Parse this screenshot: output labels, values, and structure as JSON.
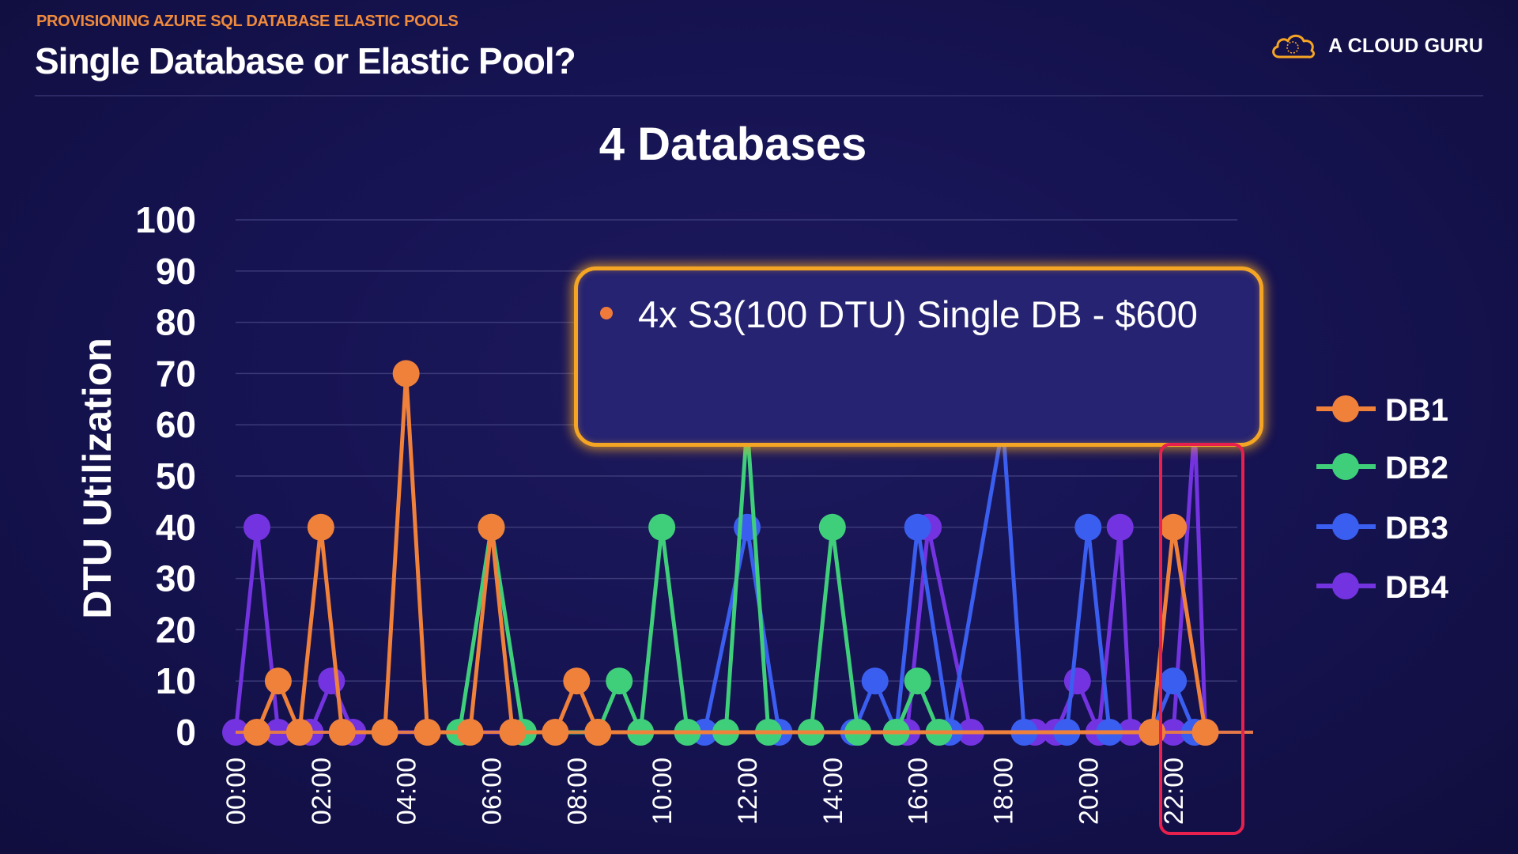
{
  "slide": {
    "kicker": "PROVISIONING AZURE SQL DATABASE ELASTIC POOLS",
    "title": "Single Database or Elastic Pool?",
    "brand": "A CLOUD GURU"
  },
  "callout": {
    "text": "4x S3(100 DTU) Single DB - $600"
  },
  "colors": {
    "DB1": "#f0813a",
    "DB2": "#3fcf7a",
    "DB3": "#3a5ef0",
    "DB4": "#7433e0",
    "accent": "#f5a524",
    "highlight": "#e8204d"
  },
  "chart_data": {
    "type": "line",
    "title": "4 Databases",
    "xlabel": "",
    "ylabel": "DTU Utilization",
    "ylim": [
      0,
      100
    ],
    "yticks": [
      0,
      10,
      20,
      30,
      40,
      50,
      60,
      70,
      80,
      90,
      100
    ],
    "xlim": [
      0,
      23.5
    ],
    "xticks": [
      "00:00",
      "02:00",
      "04:00",
      "06:00",
      "08:00",
      "10:00",
      "12:00",
      "14:00",
      "16:00",
      "18:00",
      "20:00",
      "22:00"
    ],
    "grid": true,
    "legend_position": "right",
    "series": [
      {
        "name": "DB1",
        "x": [
          0.5,
          1.0,
          1.5,
          2.0,
          2.5,
          3.5,
          4.0,
          4.5,
          5.5,
          6.0,
          6.5,
          7.5,
          8.0,
          8.5,
          21.5,
          22.0,
          22.75
        ],
        "y": [
          0,
          10,
          0,
          40,
          0,
          0,
          70,
          0,
          0,
          40,
          0,
          0,
          10,
          0,
          0,
          40,
          0
        ]
      },
      {
        "name": "DB2",
        "x": [
          5.25,
          6.0,
          6.75,
          8.5,
          9.0,
          9.5,
          10.0,
          10.6,
          11.5,
          12.0,
          12.5,
          13.5,
          14.0,
          14.6,
          15.5,
          16.0,
          16.5
        ],
        "y": [
          0,
          40,
          0,
          0,
          10,
          0,
          40,
          0,
          0,
          60,
          0,
          0,
          40,
          0,
          0,
          10,
          0
        ]
      },
      {
        "name": "DB3",
        "x": [
          11.0,
          12.0,
          12.75,
          14.5,
          15.0,
          15.5,
          16.0,
          16.75,
          18.0,
          18.5,
          19.5,
          20.0,
          20.5,
          21.5,
          22.0,
          22.5
        ],
        "y": [
          0,
          40,
          0,
          0,
          10,
          0,
          40,
          0,
          60,
          0,
          0,
          40,
          0,
          0,
          10,
          0
        ]
      },
      {
        "name": "DB4",
        "x": [
          0.0,
          0.5,
          1.0,
          1.75,
          2.25,
          2.75,
          15.75,
          16.25,
          17.25,
          18.75,
          19.25,
          19.75,
          20.25,
          20.75,
          21.0,
          22.0,
          22.5,
          22.75
        ],
        "y": [
          0,
          40,
          0,
          0,
          10,
          0,
          0,
          40,
          0,
          0,
          0,
          10,
          0,
          40,
          0,
          0,
          60,
          0
        ]
      }
    ]
  }
}
